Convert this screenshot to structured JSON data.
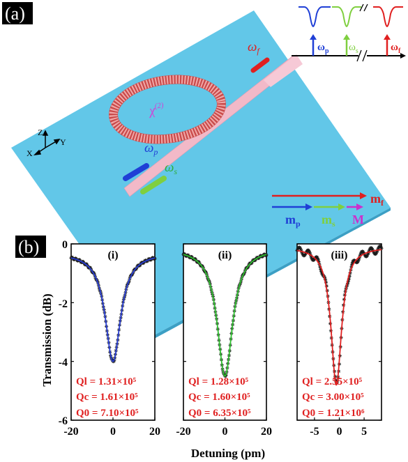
{
  "panel_labels": {
    "a": "(a)",
    "b": "(b)"
  },
  "panel_a": {
    "omega_f": "ωf",
    "omega_p": "ωp",
    "omega_s": "ωs",
    "chi2": "χ(2)",
    "axes": {
      "z": "Z",
      "y": "Y",
      "x": "X"
    },
    "spectrum_inset": {
      "omega_p": "ωp",
      "omega_s": "ωs",
      "omega_f": "ωf"
    },
    "momentum": {
      "m_f": "mf",
      "m_p": "mp",
      "m_s": "ms",
      "M": "M"
    },
    "colors": {
      "slab": "#62c7e8",
      "ring": "#e07a7a",
      "waveguide": "#f2b9c8",
      "pump": "#1f3fd6",
      "signal": "#7fcf3f",
      "fundamental": "#e01f1f",
      "chi": "#d43fd6",
      "momentum_M": "#cc2fcc"
    }
  },
  "chart_data": [
    {
      "type": "line",
      "subtitle": "(i)",
      "xlim": [
        -20,
        20
      ],
      "xticks": [
        "-20",
        "0",
        "20"
      ],
      "ylim": [
        -6,
        0
      ],
      "series": [
        {
          "kind": "measured",
          "center": 0,
          "depth": -4.0,
          "halfwidth": 4.5,
          "baseline": -0.3
        },
        {
          "kind": "fit",
          "center": 0,
          "depth": -4.0,
          "halfwidth": 4.5,
          "baseline": -0.3
        }
      ],
      "colors": {
        "measured": "#1a1a1a",
        "fit": "#2a3fd6"
      },
      "q_labels": [
        "Ql = 1.31×10⁵",
        "Qc = 1.61×10⁵",
        "Q0 = 7.10×10⁵"
      ]
    },
    {
      "type": "line",
      "subtitle": "(ii)",
      "xlim": [
        -20,
        20
      ],
      "xticks": [
        "-20",
        "0",
        "20"
      ],
      "ylim": [
        -6,
        0
      ],
      "series": [
        {
          "kind": "measured",
          "center": 0,
          "depth": -4.5,
          "halfwidth": 4.5,
          "baseline": -0.15
        },
        {
          "kind": "fit",
          "center": 0,
          "depth": -4.5,
          "halfwidth": 4.5,
          "baseline": -0.15
        }
      ],
      "colors": {
        "measured": "#1a1a1a",
        "fit": "#2fbf2f"
      },
      "q_labels": [
        "Ql = 1.28×10⁵",
        "Qc = 1.60×10⁵",
        "Q0 = 6.35×10⁵"
      ]
    },
    {
      "type": "line",
      "subtitle": "(iii)",
      "xlim": [
        -8.5,
        8.5
      ],
      "xticks": [
        "-5",
        "0",
        "5"
      ],
      "ylim": [
        -6,
        0
      ],
      "series": [
        {
          "kind": "measured",
          "center": -0.6,
          "depth": -4.8,
          "halfwidth": 1.3,
          "baseline": -0.1
        },
        {
          "kind": "fit",
          "center": -0.6,
          "depth": -4.8,
          "halfwidth": 1.3,
          "baseline": -0.1
        }
      ],
      "colors": {
        "measured": "#1a1a1a",
        "fit": "#e01f1f"
      },
      "q_labels": [
        "Ql = 2.55×10⁵",
        "Qc = 3.00×10⁵",
        "Q0 = 1.21×10⁶"
      ]
    }
  ],
  "axis_labels": {
    "y": "Transmission (dB)",
    "x": "Detuning (pm)",
    "yticks": [
      "0",
      "-2",
      "-4",
      "-6"
    ]
  }
}
